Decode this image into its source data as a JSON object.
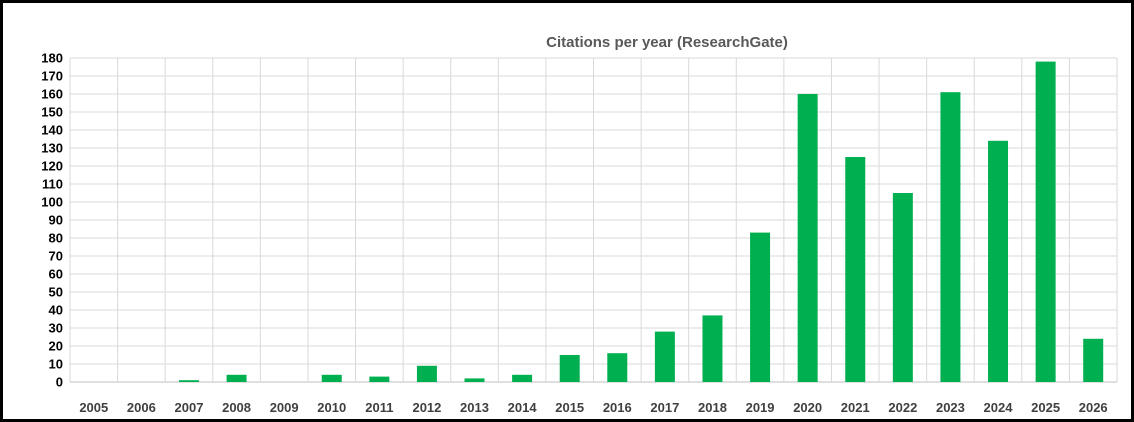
{
  "chart_data": {
    "type": "bar",
    "title": "Citations per year (ResearchGate)",
    "xlabel": "",
    "ylabel": "",
    "ylim": [
      0,
      180
    ],
    "ytick_step": 10,
    "grid": true,
    "bar_color": "#00b050",
    "categories": [
      "2005",
      "2006",
      "2007",
      "2008",
      "2009",
      "2010",
      "2011",
      "2012",
      "2013",
      "2014",
      "2015",
      "2016",
      "2017",
      "2018",
      "2019",
      "2020",
      "2021",
      "2022",
      "2023",
      "2024",
      "2025",
      "2026"
    ],
    "values": [
      0,
      0,
      1,
      4,
      0,
      4,
      3,
      9,
      2,
      4,
      15,
      16,
      28,
      37,
      83,
      160,
      125,
      105,
      161,
      134,
      178,
      24
    ]
  }
}
